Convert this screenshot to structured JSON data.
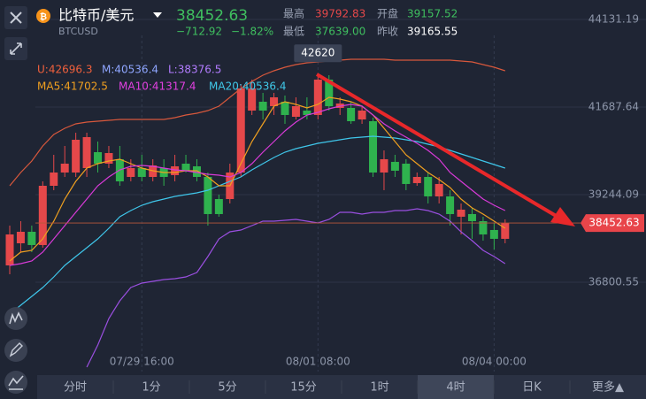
{
  "header": {
    "pair": "比特币/美元",
    "symbol": "BTCUSD",
    "price": "38452.63",
    "change": "−712.92",
    "change_pct": "−1.82%",
    "high_label": "最高",
    "high": "39792.83",
    "open_label": "开盘",
    "open": "39157.52",
    "low_label": "最低",
    "low": "37639.00",
    "prev_close_label": "昨收",
    "prev_close": "39165.55"
  },
  "indicator_labels": [
    {
      "text": "U:42696.3",
      "color": "#f0603c"
    },
    {
      "text": "M:40536.4",
      "color": "#8fa6ff"
    },
    {
      "text": "L:38376.5",
      "color": "#b27cff"
    },
    {
      "text": "MA5:41702.5",
      "color": "#f0a020"
    },
    {
      "text": "MA10:41317.4",
      "color": "#e040e0"
    },
    {
      "text": "MA20:40536.4",
      "color": "#40c8e8"
    }
  ],
  "chart_data": {
    "type": "candlestick",
    "categories": [
      null,
      null,
      null,
      null,
      null,
      null,
      null,
      null,
      null,
      null,
      null,
      null,
      "07/29 16:00",
      null,
      null,
      null,
      null,
      null,
      null,
      null,
      null,
      null,
      null,
      null,
      null,
      null,
      null,
      null,
      "08/01 08:00",
      null,
      null,
      null,
      null,
      null,
      null,
      null,
      null,
      null,
      null,
      null,
      null,
      null,
      null,
      null,
      "08/04 00:00",
      null
    ],
    "open": [
      37270,
      37887,
      38208,
      37838,
      39491,
      39861,
      39861,
      39985,
      40429,
      40108,
      40232,
      39738,
      39985,
      39738,
      39985,
      39788,
      40108,
      40034,
      39738,
      39121,
      39121,
      39861,
      41589,
      41836,
      41712,
      41836,
      41416,
      41589,
      41466,
      42453,
      41663,
      41663,
      41342,
      41293,
      39861,
      40158,
      40108,
      39566,
      39738,
      39195,
      39195,
      38628,
      38702,
      38504,
      38258,
      38011
    ],
    "high": [
      38381,
      38504,
      38381,
      39615,
      40355,
      40602,
      40972,
      40972,
      40725,
      40602,
      40602,
      40232,
      40355,
      40232,
      40232,
      40355,
      40355,
      40232,
      39861,
      39244,
      40108,
      42329,
      42453,
      42083,
      42083,
      42009,
      41959,
      41959,
      42620,
      42576,
      41959,
      41836,
      41712,
      41392,
      40478,
      40355,
      40232,
      39861,
      39861,
      39738,
      39368,
      38998,
      38874,
      38628,
      38455,
      38554
    ],
    "low": [
      37023,
      37640,
      37640,
      37764,
      39368,
      39738,
      39738,
      39738,
      39861,
      39985,
      39491,
      39615,
      39615,
      39615,
      39491,
      39615,
      39861,
      39615,
      38381,
      38628,
      38998,
      39738,
      41466,
      41342,
      41466,
      41219,
      41342,
      41342,
      41342,
      41589,
      41466,
      41219,
      41219,
      39738,
      39368,
      39738,
      39368,
      39491,
      38998,
      38998,
      38381,
      38134,
      38011,
      37962,
      37714,
      37887
    ],
    "close": [
      38134,
      38208,
      37838,
      39491,
      39861,
      40108,
      40775,
      40849,
      40108,
      40404,
      39615,
      39985,
      39738,
      40059,
      39738,
      40034,
      39911,
      39738,
      38702,
      38702,
      39861,
      42206,
      42206,
      41589,
      41959,
      41466,
      41712,
      41466,
      42453,
      41712,
      41786,
      41293,
      41589,
      39861,
      40232,
      39911,
      39541,
      39738,
      39195,
      39541,
      38702,
      38825,
      38504,
      38134,
      38011,
      38452.63
    ],
    "up_color": "#e5484a",
    "down_color": "#2fb24e",
    "last_price_color": "#e8454a",
    "series": [
      {
        "name": "U",
        "color": "#d8583c",
        "values": [
          39491,
          39861,
          40182,
          40602,
          40923,
          41095,
          41219,
          41268,
          41293,
          41318,
          41342,
          41342,
          41342,
          41342,
          41342,
          41392,
          41466,
          41515,
          41589,
          41712,
          41959,
          42206,
          42403,
          42576,
          42700,
          42798,
          42872,
          42922,
          42946,
          42971,
          42996,
          43020,
          43020,
          43020,
          43020,
          42996,
          42996,
          42996,
          42996,
          42996,
          42996,
          42971,
          42946,
          42872,
          42798,
          42700
        ]
      },
      {
        "name": "M",
        "color": "#3fc6ea",
        "values": [
          35913,
          36159,
          36406,
          36653,
          36949,
          37270,
          37517,
          37764,
          38011,
          38307,
          38628,
          38800,
          38948,
          39047,
          39121,
          39195,
          39244,
          39294,
          39368,
          39491,
          39615,
          39738,
          39935,
          40108,
          40281,
          40429,
          40528,
          40602,
          40676,
          40725,
          40775,
          40824,
          40849,
          40873,
          40849,
          40824,
          40775,
          40725,
          40651,
          40577,
          40478,
          40380,
          40281,
          40182,
          40084,
          39985
        ]
      },
      {
        "name": "L",
        "color": "#9a4fe0",
        "values": [
          null,
          null,
          null,
          null,
          null,
          null,
          null,
          34432,
          35049,
          35789,
          36283,
          36653,
          36776,
          36826,
          36875,
          36900,
          36949,
          37073,
          37517,
          38011,
          38208,
          38258,
          38381,
          38504,
          38504,
          38529,
          38554,
          38504,
          38455,
          38554,
          38751,
          38751,
          38702,
          38751,
          38751,
          38800,
          38800,
          38850,
          38800,
          38702,
          38504,
          38208,
          37962,
          37690,
          37517,
          37319
        ]
      },
      {
        "name": "MA5",
        "color": "#f0a020",
        "values": [
          37393,
          37640,
          37690,
          38011,
          38504,
          39121,
          39615,
          39985,
          40108,
          40182,
          40232,
          40108,
          39985,
          39911,
          39861,
          39861,
          39911,
          39911,
          39738,
          39491,
          39491,
          40108,
          40725,
          41219,
          41712,
          41836,
          41762,
          41663,
          41762,
          41959,
          41910,
          41836,
          41712,
          41466,
          41095,
          40725,
          40355,
          40108,
          39861,
          39664,
          39442,
          39121,
          38874,
          38702,
          38504,
          38307
        ]
      },
      {
        "name": "MA10",
        "color": "#d83ad8",
        "values": [
          37270,
          37319,
          37393,
          37640,
          38011,
          38381,
          38751,
          39121,
          39491,
          39738,
          39935,
          40034,
          40059,
          40034,
          39985,
          39935,
          39911,
          39861,
          39812,
          39788,
          39738,
          39861,
          40108,
          40429,
          40725,
          41021,
          41268,
          41466,
          41540,
          41638,
          41712,
          41762,
          41712,
          41466,
          41219,
          41021,
          40849,
          40676,
          40478,
          40232,
          39861,
          39615,
          39368,
          39121,
          38948,
          38800
        ]
      }
    ],
    "ylim": [
      34308,
      44674
    ],
    "yticks": [
      44131.19,
      41687.64,
      39244.09,
      36800.55
    ],
    "grid": true
  },
  "toolbar": {
    "tabs": [
      "分时",
      "1分",
      "5分",
      "15分",
      "1时",
      "4时",
      "日K",
      "更多▲"
    ],
    "active": 5
  }
}
